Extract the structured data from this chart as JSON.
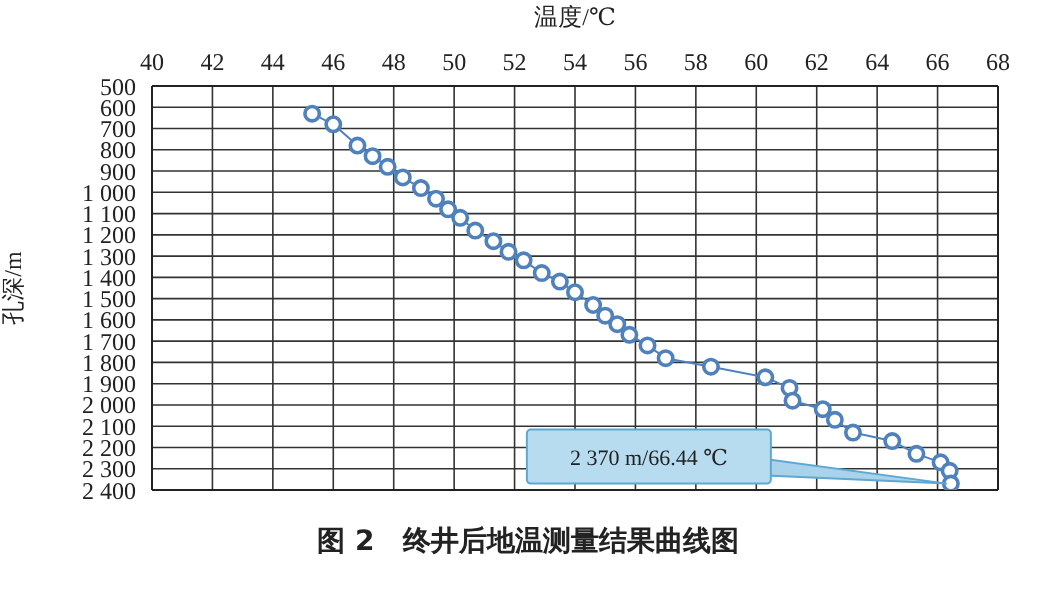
{
  "chart_data": {
    "type": "line",
    "title": "图 2　终井后地温测量结果曲线图",
    "xlabel": "温度/℃",
    "ylabel": "孔深/m",
    "x": [
      45.3,
      46.0,
      46.8,
      47.3,
      47.8,
      48.3,
      48.9,
      49.4,
      49.8,
      50.2,
      50.7,
      51.3,
      51.8,
      52.3,
      52.9,
      53.5,
      54.0,
      54.6,
      55.0,
      55.4,
      55.8,
      56.4,
      57.0,
      58.5,
      60.3,
      61.1,
      61.2,
      62.2,
      62.6,
      63.2,
      64.5,
      65.3,
      66.1,
      66.4,
      66.44
    ],
    "series": [
      {
        "color": "#4f81bd",
        "values": [
          630,
          680,
          780,
          830,
          880,
          930,
          980,
          1030,
          1080,
          1120,
          1180,
          1230,
          1280,
          1320,
          1380,
          1420,
          1470,
          1530,
          1580,
          1620,
          1670,
          1720,
          1780,
          1820,
          1870,
          1920,
          1980,
          2020,
          2070,
          2130,
          2170,
          2230,
          2270,
          2310,
          2370
        ]
      }
    ],
    "marker": "circle",
    "line_style": "solid",
    "grid": true,
    "legend": false,
    "xlim": [
      40,
      68
    ],
    "xticks": [
      40,
      42,
      44,
      46,
      48,
      50,
      52,
      54,
      56,
      58,
      60,
      62,
      64,
      66,
      68
    ],
    "ylim": [
      2400,
      500
    ],
    "yticks": [
      500,
      600,
      700,
      800,
      900,
      {
        "value": 1000,
        "label": "1 000"
      },
      {
        "value": 1100,
        "label": "1 100"
      },
      {
        "value": 1200,
        "label": "1 200"
      },
      {
        "value": 1300,
        "label": "1 300"
      },
      {
        "value": 1400,
        "label": "1 400"
      },
      {
        "value": 1500,
        "label": "1 500"
      },
      {
        "value": 1600,
        "label": "1 600"
      },
      {
        "value": 1700,
        "label": "1 700"
      },
      {
        "value": 1800,
        "label": "1 800"
      },
      {
        "value": 1900,
        "label": "1 900"
      },
      {
        "value": 2000,
        "label": "2 000"
      },
      {
        "value": 2100,
        "label": "2 100"
      },
      {
        "value": 2200,
        "label": "2 200"
      },
      {
        "value": 2300,
        "label": "2 300"
      },
      {
        "value": 2400,
        "label": "2 400"
      }
    ],
    "annotations": [
      "2 370 m/66.44 ℃"
    ]
  }
}
